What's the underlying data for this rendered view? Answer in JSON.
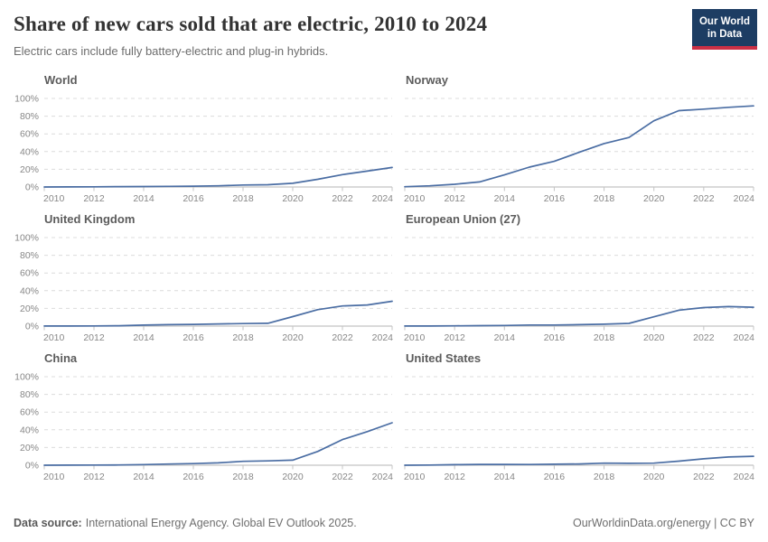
{
  "header": {
    "title": "Share of new cars sold that are electric, 2010 to 2024",
    "subtitle": "Electric cars include fully battery-electric and plug-in hybrids.",
    "logo": {
      "line1": "Our World",
      "line2": "in Data",
      "bg_color": "#1d3d63",
      "accent_color": "#cb3045"
    }
  },
  "footer": {
    "source_label": "Data source:",
    "source_text": "International Energy Agency. Global EV Outlook 2025.",
    "right_text": "OurWorldinData.org/energy | CC BY"
  },
  "chart_data": {
    "type": "line",
    "title": "Share of new cars sold that are electric, 2010 to 2024",
    "subtitle": "Electric cars include fully battery-electric and plug-in hybrids.",
    "layout": "small multiples, 2 columns x 3 rows; y-axis percent labels shown on left column only; dashed horizontal gridlines",
    "x": [
      2010,
      2011,
      2012,
      2013,
      2014,
      2015,
      2016,
      2017,
      2018,
      2019,
      2020,
      2021,
      2022,
      2023,
      2024
    ],
    "x_tick_labels": [
      "2010",
      "2012",
      "2014",
      "2016",
      "2018",
      "2020",
      "2022",
      "2024"
    ],
    "x_ticks": [
      2010,
      2012,
      2014,
      2016,
      2018,
      2020,
      2022,
      2024
    ],
    "ylim": [
      0,
      100
    ],
    "y_ticks": [
      0,
      20,
      40,
      60,
      80,
      100
    ],
    "y_tick_labels": [
      "0%",
      "20%",
      "40%",
      "60%",
      "80%",
      "100%"
    ],
    "grid": "dashed",
    "line_color": "#4a6da3",
    "grid_color": "#dcdcdc",
    "axis_color": "#c4c4c4",
    "tick_label_color": "#878787",
    "series": [
      {
        "name": "World",
        "values": [
          0.0,
          0.1,
          0.2,
          0.4,
          0.5,
          0.7,
          0.9,
          1.3,
          2.2,
          2.5,
          4.2,
          8.7,
          14,
          18,
          22
        ]
      },
      {
        "name": "Norway",
        "values": [
          0.3,
          1.3,
          3.1,
          5.7,
          13.7,
          22.4,
          29,
          39.2,
          49.1,
          55.9,
          74.8,
          86.2,
          88,
          90,
          91.6
        ]
      },
      {
        "name": "United Kingdom",
        "values": [
          0.1,
          0.1,
          0.2,
          0.4,
          1.1,
          1.6,
          1.9,
          2.4,
          2.9,
          3.2,
          10.7,
          18.6,
          22.8,
          23.9,
          28.1
        ]
      },
      {
        "name": "European Union (27)",
        "values": [
          0.1,
          0.1,
          0.3,
          0.5,
          0.7,
          1.2,
          1.2,
          1.6,
          2.1,
          3.1,
          10.5,
          18.0,
          20.9,
          22.0,
          21.3
        ]
      },
      {
        "name": "China",
        "values": [
          0.0,
          0.1,
          0.2,
          0.3,
          0.7,
          1.3,
          1.8,
          2.7,
          4.4,
          4.9,
          5.7,
          15.5,
          29,
          38,
          48
        ]
      },
      {
        "name": "United States",
        "values": [
          0.0,
          0.2,
          0.6,
          0.9,
          0.9,
          0.8,
          1.1,
          1.4,
          2.3,
          2.1,
          2.3,
          4.6,
          7.2,
          9.3,
          10.1
        ]
      }
    ]
  }
}
